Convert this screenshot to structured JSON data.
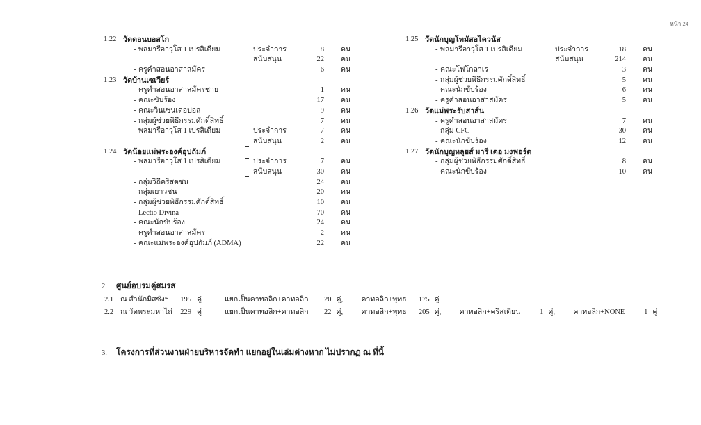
{
  "page": {
    "label": "หน้า 24"
  },
  "colors": {
    "text": "#1e1e1e",
    "muted": "#6f6f6f",
    "background": "#ffffff"
  },
  "section1": {
    "left": [
      {
        "no": "1.22",
        "name": "วัดดอนบอสโก",
        "items": [
          {
            "label": "พลมารีอาวุโส 1 เปรสิเดียม",
            "sub": [
              {
                "label": "ประจำการ",
                "count": "8",
                "unit": "คน"
              },
              {
                "label": "สนับสนุน",
                "count": "22",
                "unit": "คน"
              }
            ]
          },
          {
            "label": "ครูคำสอนอาสาสมัคร",
            "count": "6",
            "unit": "คน"
          }
        ]
      },
      {
        "no": "1.23",
        "name": "วัดบ้านเซเวียร์",
        "items": [
          {
            "label": "ครูคำสอนอาสาสมัครชาย",
            "count": "1",
            "unit": "คน"
          },
          {
            "label": "คณะขับร้อง",
            "count": "17",
            "unit": "คน"
          },
          {
            "label": "คณะวินเซนเดอปอล",
            "count": "9",
            "unit": "คน"
          },
          {
            "label": "กลุ่มผู้ช่วยพิธีกรรมศักดิ์สิทธิ์",
            "count": "7",
            "unit": "คน"
          },
          {
            "label": "พลมารีอาวุโส 1 เปรสิเดียม",
            "sub": [
              {
                "label": "ประจำการ",
                "count": "7",
                "unit": "คน"
              },
              {
                "label": "สนับสนุน",
                "count": "2",
                "unit": "คน"
              }
            ]
          }
        ]
      },
      {
        "no": "1.24",
        "name": "วัดน้อยแม่พระองค์อุปถัมภ์",
        "items": [
          {
            "label": "พลมารีอาวุโส 1 เปรสิเดียม",
            "sub": [
              {
                "label": "ประจำการ",
                "count": "7",
                "unit": "คน"
              },
              {
                "label": "สนับสนุน",
                "count": "30",
                "unit": "คน"
              }
            ]
          },
          {
            "label": "กลุ่มวิถีคริสตชน",
            "count": "24",
            "unit": "คน"
          },
          {
            "label": "กลุ่มเยาวชน",
            "count": "20",
            "unit": "คน"
          },
          {
            "label": "กลุ่มผู้ช่วยพิธีกรรมศักดิ์สิทธิ์",
            "count": "10",
            "unit": "คน"
          },
          {
            "label": "Lectio Divina",
            "count": "70",
            "unit": "คน"
          },
          {
            "label": "คณะนักขับร้อง",
            "count": "24",
            "unit": "คน"
          },
          {
            "label": "ครูคำสอนอาสาสมัคร",
            "count": "2",
            "unit": "คน"
          },
          {
            "label": "คณะแม่พระองค์อุปถัมภ์ (ADMA)",
            "count": "22",
            "unit": "คน"
          }
        ]
      }
    ],
    "right": [
      {
        "no": "1.25",
        "name": "วัดนักบุญโทมัสอไควนัส",
        "items": [
          {
            "label": "พลมารีอาวุโส 1 เปรสิเดียม",
            "sub": [
              {
                "label": "ประจำการ",
                "count": "18",
                "unit": "คน"
              },
              {
                "label": "สนับสนุน",
                "count": "214",
                "unit": "คน"
              }
            ]
          },
          {
            "label": "คณะโฟโกลาเร",
            "count": "3",
            "unit": "คน"
          },
          {
            "label": "กลุ่มผู้ช่วยพิธีกรรมศักดิ์สิทธิ์",
            "count": "5",
            "unit": "คน"
          },
          {
            "label": "คณะนักขับร้อง",
            "count": "6",
            "unit": "คน"
          },
          {
            "label": "ครูคำสอนอาสาสมัคร",
            "count": "5",
            "unit": "คน"
          }
        ]
      },
      {
        "no": "1.26",
        "name": "วัดแม่พระรับสาส์น",
        "items": [
          {
            "label": "ครูคำสอนอาสาสมัคร",
            "count": "7",
            "unit": "คน"
          },
          {
            "label": "กลุ่ม CFC",
            "count": "30",
            "unit": "คน"
          },
          {
            "label": "คณะนักขับร้อง",
            "count": "12",
            "unit": "คน"
          }
        ]
      },
      {
        "no": "1.27",
        "name": "วัดนักบุญหลุยส์ มารี เดอ มงฟอร์ต",
        "items": [
          {
            "label": "กลุ่มผู้ช่วยพิธีกรรมศักดิ์สิทธิ์",
            "count": "8",
            "unit": "คน"
          },
          {
            "label": "คณะนักขับร้อง",
            "count": "10",
            "unit": "คน"
          }
        ]
      }
    ]
  },
  "section2": {
    "no": "2.",
    "title": "ศูนย์อบรมคู่สมรส",
    "rows": [
      {
        "no": "2.1",
        "place": "ณ สำนักมิสซังฯ",
        "total": "195",
        "unit": "คู่",
        "parts": [
          {
            "label": "แยกเป็นคาทอลิก+คาทอลิก",
            "count": "20",
            "unit": "คู่,"
          },
          {
            "label": "คาทอลิก+พุทธ",
            "count": "175",
            "unit": "คู่"
          }
        ]
      },
      {
        "no": "2.2",
        "place": "ณ วัดพระมหาไถ่",
        "total": "229",
        "unit": "คู่",
        "parts": [
          {
            "label": "แยกเป็นคาทอลิก+คาทอลิก",
            "count": "22",
            "unit": "คู่,"
          },
          {
            "label": "คาทอลิก+พุทธ",
            "count": "205",
            "unit": "คู่,"
          },
          {
            "label": "คาทอลิก+คริสเตียน",
            "count": "1",
            "unit": "คู่,"
          },
          {
            "label": "คาทอลิก+NONE",
            "count": "1",
            "unit": "คู่"
          }
        ]
      }
    ]
  },
  "section3": {
    "no": "3.",
    "title": "โครงการที่ส่วนงานฝ่ายบริหารจัดทำ แยกอยู่ในเล่มต่างหาก ไม่ปรากฏ ณ ที่นี้"
  }
}
